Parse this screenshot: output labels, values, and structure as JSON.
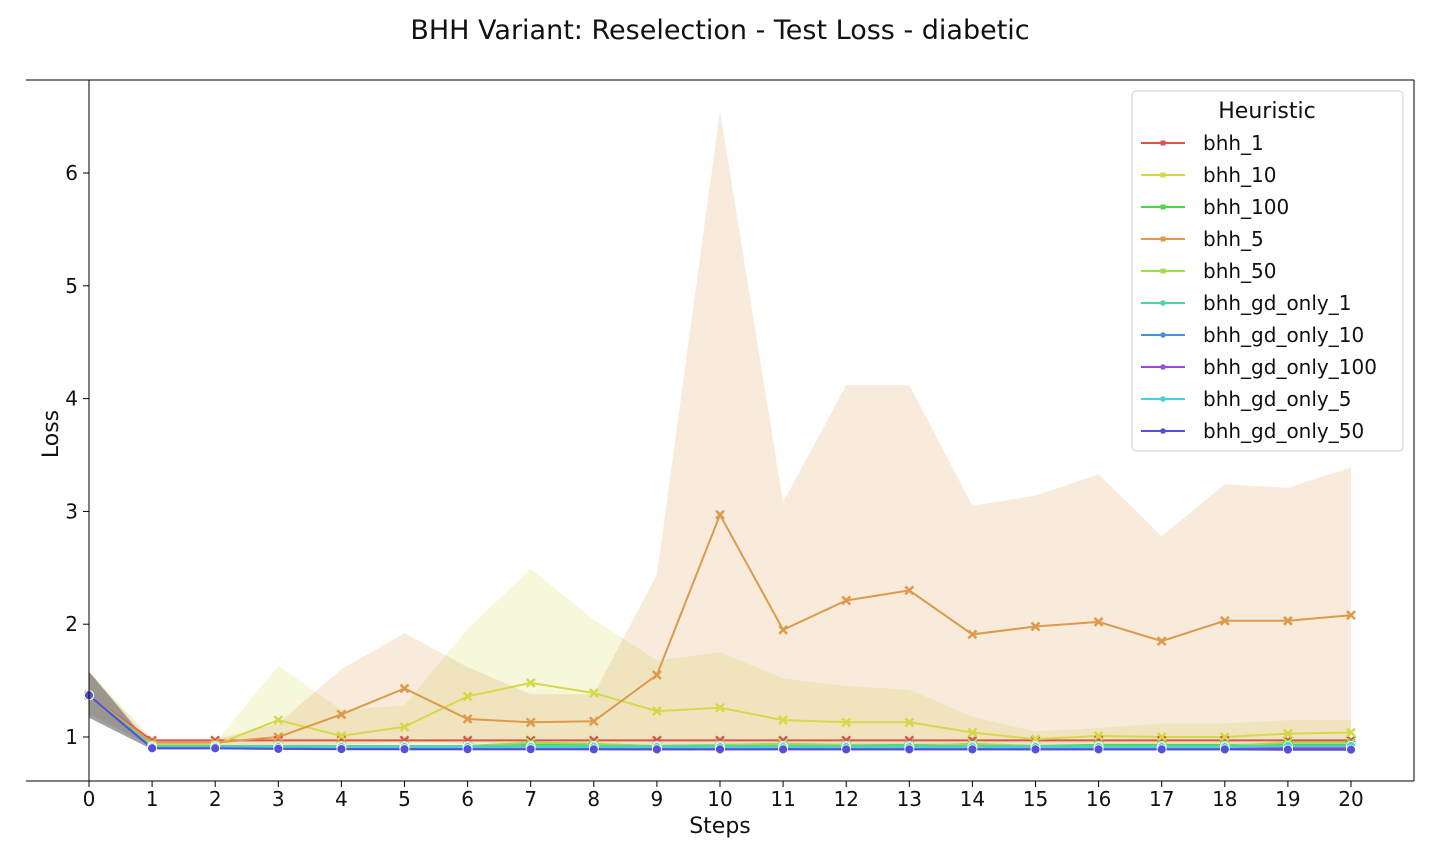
{
  "chart_data": {
    "type": "line",
    "title": "BHH Variant: Reselection - Test Loss - diabetic",
    "xlabel": "Steps",
    "ylabel": "Loss",
    "x": [
      0,
      1,
      2,
      3,
      4,
      5,
      6,
      7,
      8,
      9,
      10,
      11,
      12,
      13,
      14,
      15,
      16,
      17,
      18,
      19,
      20
    ],
    "xlim": [
      -1,
      21
    ],
    "ylim": [
      0.5,
      6.85
    ],
    "yticks": [
      1,
      2,
      3,
      4,
      5,
      6
    ],
    "grid": false,
    "legend": {
      "title": "Heuristic",
      "placement": "top-right"
    },
    "series": [
      {
        "name": "bhh_1",
        "color": "#d9534f",
        "marker": "x",
        "values": [
          1.37,
          0.97,
          0.97,
          0.97,
          0.97,
          0.97,
          0.97,
          0.97,
          0.97,
          0.97,
          0.97,
          0.97,
          0.97,
          0.97,
          0.97,
          0.97,
          0.97,
          0.97,
          0.97,
          0.97,
          0.97
        ]
      },
      {
        "name": "bhh_10",
        "color": "#d4d94a",
        "marker": "x",
        "values": [
          1.37,
          0.93,
          0.93,
          1.15,
          1.01,
          1.09,
          1.36,
          1.48,
          1.39,
          1.23,
          1.26,
          1.15,
          1.13,
          1.13,
          1.04,
          0.98,
          1.01,
          1.0,
          1.0,
          1.03,
          1.04
        ],
        "band_lower": [
          1.2,
          0.91,
          0.91,
          0.91,
          0.91,
          0.91,
          0.91,
          0.91,
          0.91,
          0.91,
          0.91,
          0.91,
          0.91,
          0.91,
          0.91,
          0.91,
          0.91,
          0.91,
          0.91,
          0.91,
          0.91
        ],
        "band_upper": [
          1.58,
          0.95,
          0.95,
          1.63,
          1.24,
          1.28,
          1.96,
          2.49,
          2.04,
          1.68,
          1.75,
          1.52,
          1.45,
          1.42,
          1.18,
          1.05,
          1.08,
          1.12,
          1.12,
          1.15,
          1.15
        ]
      },
      {
        "name": "bhh_100",
        "color": "#4fd44a",
        "marker": "x",
        "values": [
          1.37,
          0.92,
          0.92,
          0.92,
          0.92,
          0.92,
          0.92,
          0.93,
          0.93,
          0.92,
          0.93,
          0.93,
          0.93,
          0.93,
          0.93,
          0.92,
          0.93,
          0.93,
          0.93,
          0.93,
          0.93
        ]
      },
      {
        "name": "bhh_5",
        "color": "#dd9a4a",
        "marker": "x",
        "values": [
          1.37,
          0.95,
          0.95,
          1.0,
          1.2,
          1.43,
          1.16,
          1.13,
          1.14,
          1.55,
          2.97,
          1.95,
          2.21,
          2.3,
          1.91,
          1.98,
          2.02,
          1.85,
          2.03,
          2.03,
          2.08
        ],
        "band_lower": [
          1.2,
          0.92,
          0.92,
          0.92,
          0.93,
          0.95,
          0.94,
          0.95,
          0.95,
          0.93,
          0.92,
          0.92,
          0.92,
          0.93,
          0.93,
          0.93,
          0.93,
          0.93,
          0.93,
          0.93,
          0.93
        ],
        "band_upper": [
          1.58,
          0.98,
          0.98,
          1.12,
          1.6,
          1.92,
          1.62,
          1.38,
          1.38,
          2.44,
          6.55,
          3.08,
          4.12,
          4.12,
          3.05,
          3.14,
          3.33,
          2.78,
          3.24,
          3.21,
          3.39
        ]
      },
      {
        "name": "bhh_50",
        "color": "#9fdb4a",
        "marker": "x",
        "values": [
          1.37,
          0.92,
          0.92,
          0.92,
          0.92,
          0.92,
          0.92,
          0.95,
          0.94,
          0.92,
          0.93,
          0.94,
          0.93,
          0.92,
          0.94,
          0.92,
          0.92,
          0.92,
          0.92,
          0.95,
          0.95
        ]
      },
      {
        "name": "bhh_gd_only_1",
        "color": "#4fd6a0",
        "marker": "o",
        "values": [
          1.37,
          0.92,
          0.92,
          0.92,
          0.92,
          0.92,
          0.92,
          0.92,
          0.92,
          0.92,
          0.92,
          0.92,
          0.92,
          0.92,
          0.92,
          0.92,
          0.92,
          0.92,
          0.92,
          0.92,
          0.92
        ]
      },
      {
        "name": "bhh_gd_only_10",
        "color": "#4a8ede",
        "marker": "o",
        "values": [
          1.37,
          0.9,
          0.9,
          0.9,
          0.9,
          0.9,
          0.9,
          0.9,
          0.9,
          0.9,
          0.9,
          0.9,
          0.9,
          0.9,
          0.9,
          0.9,
          0.9,
          0.9,
          0.9,
          0.9,
          0.9
        ]
      },
      {
        "name": "bhh_gd_only_100",
        "color": "#9a4ade",
        "marker": "o",
        "values": [
          1.37,
          0.9,
          0.9,
          0.9,
          0.9,
          0.9,
          0.9,
          0.9,
          0.9,
          0.9,
          0.9,
          0.9,
          0.9,
          0.9,
          0.9,
          0.9,
          0.9,
          0.9,
          0.9,
          0.9,
          0.9
        ]
      },
      {
        "name": "bhh_gd_only_5",
        "color": "#4ad0d6",
        "marker": "o",
        "values": [
          1.37,
          0.91,
          0.91,
          0.91,
          0.91,
          0.91,
          0.91,
          0.91,
          0.91,
          0.91,
          0.91,
          0.91,
          0.91,
          0.91,
          0.91,
          0.91,
          0.91,
          0.91,
          0.91,
          0.92,
          0.92
        ]
      },
      {
        "name": "bhh_gd_only_50",
        "color": "#5650d6",
        "marker": "o",
        "values": [
          1.37,
          0.9,
          0.9,
          0.895,
          0.893,
          0.892,
          0.892,
          0.892,
          0.891,
          0.89,
          0.89,
          0.891,
          0.89,
          0.89,
          0.89,
          0.89,
          0.89,
          0.89,
          0.89,
          0.888,
          0.888
        ],
        "band_lower": [
          1.17,
          0.89,
          0.89,
          0.885,
          0.883,
          0.882,
          0.882,
          0.882,
          0.881,
          0.88,
          0.88,
          0.881,
          0.88,
          0.88,
          0.88,
          0.88,
          0.88,
          0.88,
          0.88,
          0.878,
          0.878
        ],
        "band_upper": [
          1.58,
          0.91,
          0.91,
          0.905,
          0.903,
          0.902,
          0.902,
          0.902,
          0.901,
          0.9,
          0.9,
          0.901,
          0.9,
          0.9,
          0.9,
          0.9,
          0.9,
          0.9,
          0.9,
          0.898,
          0.898
        ]
      }
    ]
  }
}
